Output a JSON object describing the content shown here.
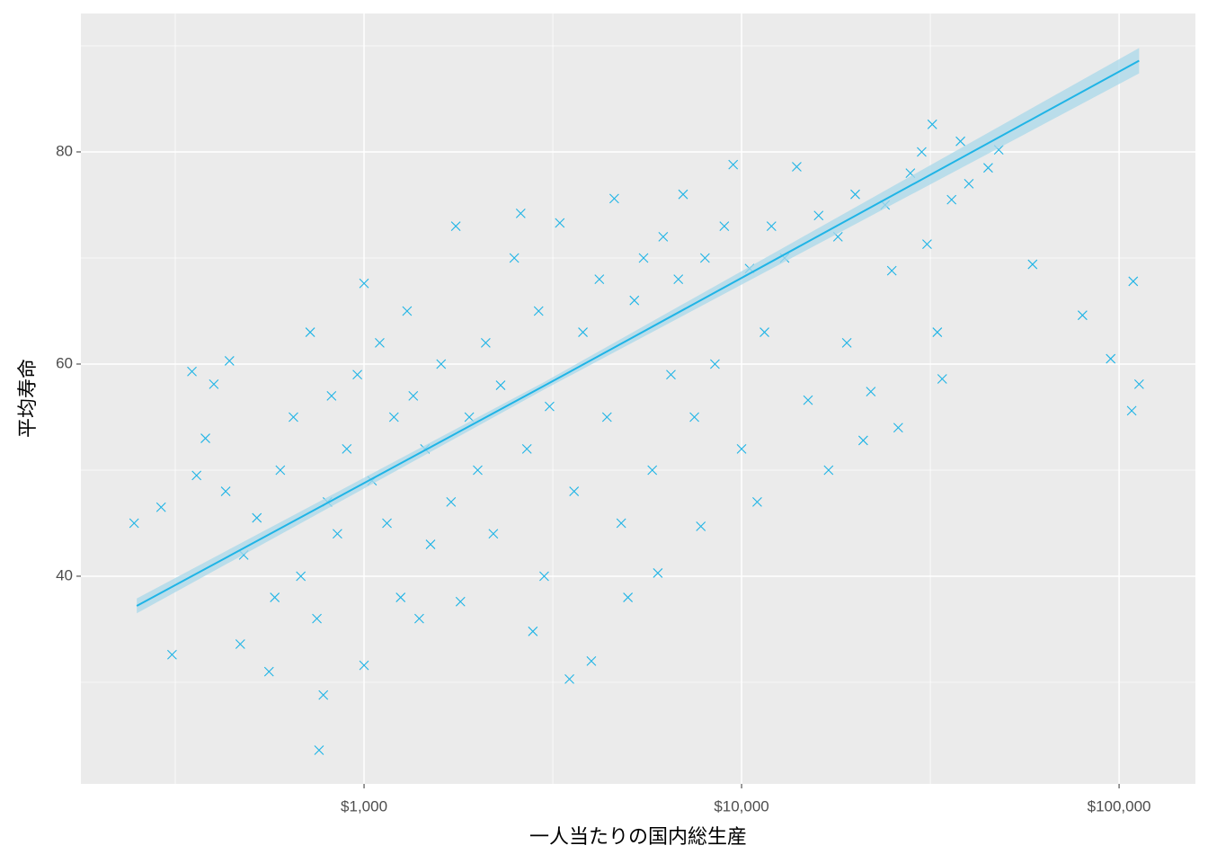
{
  "chart_data": {
    "type": "scatter",
    "xlabel": "一人当たりの国内総生産",
    "ylabel": "平均寿命",
    "xscale": "log",
    "grid": true,
    "color": "#1fb4e6",
    "marker": "x",
    "xlim": [
      177.8,
      159300
    ],
    "ylim": [
      20.42,
      93.05
    ],
    "xticks": [
      {
        "value": 1000,
        "label": "$1,000"
      },
      {
        "value": 10000,
        "label": "$10,000"
      },
      {
        "value": 100000,
        "label": "$100,000"
      }
    ],
    "yticks": [
      40,
      60,
      80
    ],
    "x": [
      246,
      290,
      310,
      350,
      360,
      380,
      400,
      430,
      440,
      470,
      480,
      520,
      560,
      580,
      600,
      650,
      680,
      720,
      750,
      760,
      780,
      800,
      820,
      850,
      900,
      960,
      1000,
      1000,
      1050,
      1100,
      1150,
      1200,
      1250,
      1300,
      1350,
      1400,
      1450,
      1500,
      1600,
      1700,
      1750,
      1800,
      1900,
      2000,
      2100,
      2200,
      2300,
      2500,
      2600,
      2700,
      2800,
      2900,
      3000,
      3100,
      3300,
      3500,
      3600,
      3800,
      4000,
      4200,
      4400,
      4600,
      4800,
      5000,
      5200,
      5500,
      5800,
      6000,
      6200,
      6500,
      6800,
      7000,
      7500,
      7800,
      8000,
      8500,
      9000,
      9500,
      10000,
      10500,
      11000,
      11500,
      12000,
      13000,
      14000,
      15000,
      16000,
      17000,
      18000,
      19000,
      20000,
      21000,
      22000,
      24000,
      25000,
      26000,
      28000,
      30000,
      31000,
      32000,
      33000,
      34000,
      36000,
      38000,
      40000,
      45000,
      48000,
      59000,
      80000,
      95000,
      108000,
      109000,
      113000
    ],
    "values": [
      45,
      46.5,
      32.6,
      59.3,
      49.5,
      53,
      58.1,
      48,
      60.3,
      33.6,
      42,
      45.5,
      31,
      38,
      50,
      55,
      40,
      63,
      36,
      23.6,
      28.8,
      47,
      57,
      44,
      52,
      59,
      67.6,
      31.6,
      49,
      62,
      45,
      55,
      38,
      65,
      57,
      36,
      52,
      43,
      60,
      47,
      73,
      37.6,
      55,
      50,
      62,
      44,
      58,
      70,
      74.2,
      52,
      34.8,
      65,
      40,
      56,
      73.3,
      30.3,
      48,
      63,
      32,
      68,
      55,
      75.6,
      45,
      38,
      66,
      70,
      50,
      40.3,
      72,
      59,
      68,
      76,
      55,
      44.7,
      70,
      60,
      73,
      78.8,
      52,
      69,
      47,
      63,
      73,
      70,
      78.6,
      56.6,
      74,
      50,
      72,
      62,
      76,
      52.8,
      57.4,
      75,
      68.8,
      54,
      78,
      80,
      71.3,
      82.6,
      63,
      58.6,
      75.5,
      81,
      77,
      78.5,
      80.2,
      69.4,
      64.6,
      60.5,
      55.6,
      67.8,
      58.1
    ],
    "fit": {
      "color": "#1fb4e6",
      "band_color": "#a9d8ea",
      "x": [
        250,
        3000,
        113000
      ],
      "values": [
        37.2,
        57.95,
        88.6
      ],
      "lower": [
        36.5,
        57.6,
        87.4
      ],
      "upper": [
        37.9,
        58.3,
        89.8
      ]
    }
  }
}
